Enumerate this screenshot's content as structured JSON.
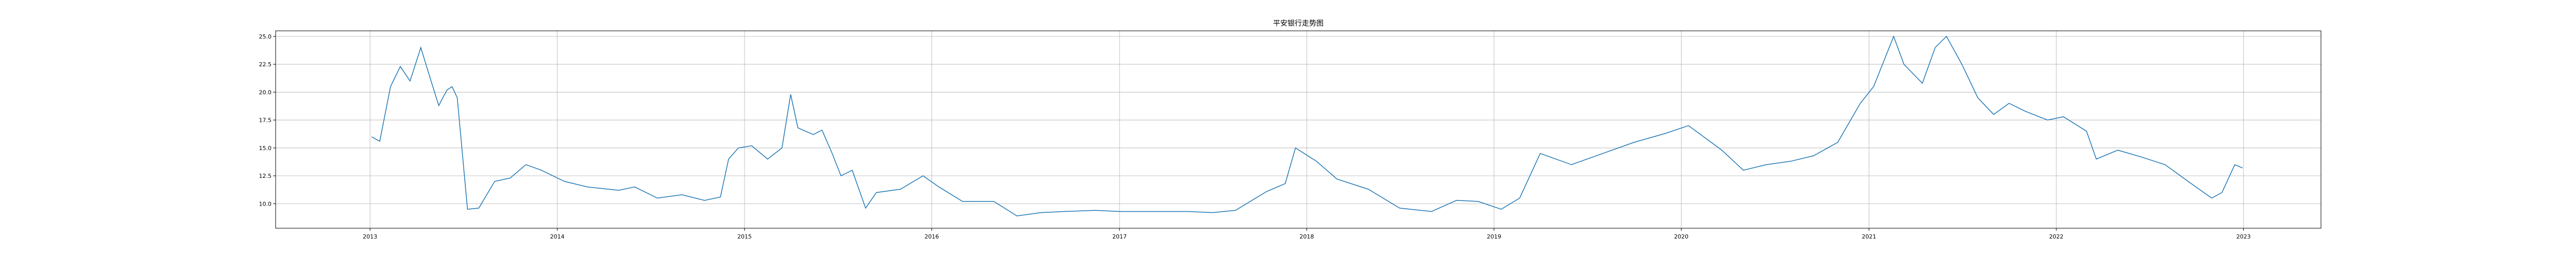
{
  "chart_data": {
    "type": "line",
    "title": "平安银行走势图",
    "xlabel": "",
    "ylabel": "",
    "grid": true,
    "legend": "none",
    "line_color": "#1f77b4",
    "xlim": [
      "2012-07-01",
      "2023-06-01"
    ],
    "ylim": [
      7.8,
      25.5
    ],
    "x_ticks": [
      "2013",
      "2014",
      "2015",
      "2016",
      "2017",
      "2018",
      "2019",
      "2020",
      "2021",
      "2022",
      "2023"
    ],
    "y_ticks": [
      "10.0",
      "12.5",
      "15.0",
      "17.5",
      "20.0",
      "22.5",
      "25.0"
    ],
    "series": [
      {
        "x": [
          "2013-01-04",
          "2013-01-20",
          "2013-02-10",
          "2013-03-01",
          "2013-03-20",
          "2013-04-10",
          "2013-04-30",
          "2013-05-15",
          "2013-05-31",
          "2013-06-10",
          "2013-06-20",
          "2013-07-10",
          "2013-08-01",
          "2013-09-01",
          "2013-10-01",
          "2013-11-01",
          "2013-12-01",
          "2014-01-15",
          "2014-03-01",
          "2014-05-01",
          "2014-06-01",
          "2014-07-15",
          "2014-09-01",
          "2014-10-15",
          "2014-11-15",
          "2014-12-01",
          "2014-12-20",
          "2015-01-15",
          "2015-02-15",
          "2015-03-15",
          "2015-04-01",
          "2015-04-15",
          "2015-05-15",
          "2015-06-01",
          "2015-06-20",
          "2015-07-08",
          "2015-07-30",
          "2015-08-25",
          "2015-09-15",
          "2015-11-01",
          "2015-12-15",
          "2016-01-15",
          "2016-03-01",
          "2016-05-01",
          "2016-06-15",
          "2016-08-01",
          "2016-09-15",
          "2016-11-15",
          "2017-01-01",
          "2017-03-01",
          "2017-05-15",
          "2017-07-01",
          "2017-08-15",
          "2017-10-15",
          "2017-11-20",
          "2017-12-10",
          "2018-01-20",
          "2018-03-01",
          "2018-05-01",
          "2018-07-01",
          "2018-09-01",
          "2018-10-20",
          "2018-12-01",
          "2019-01-15",
          "2019-02-20",
          "2019-04-01",
          "2019-06-01",
          "2019-08-01",
          "2019-10-01",
          "2019-12-01",
          "2020-01-15",
          "2020-03-20",
          "2020-05-01",
          "2020-06-15",
          "2020-08-01",
          "2020-09-15",
          "2020-11-01",
          "2020-12-15",
          "2021-01-10",
          "2021-02-18",
          "2021-03-10",
          "2021-04-15",
          "2021-05-10",
          "2021-06-01",
          "2021-07-01",
          "2021-08-01",
          "2021-09-01",
          "2021-10-01",
          "2021-11-01",
          "2021-12-15",
          "2022-01-15",
          "2022-03-01",
          "2022-03-20",
          "2022-05-01",
          "2022-06-15",
          "2022-08-01",
          "2022-09-15",
          "2022-10-31",
          "2022-11-20",
          "2022-12-15",
          "2022-12-30"
        ],
        "y": [
          16.0,
          15.6,
          20.5,
          22.3,
          21.0,
          24.0,
          21.0,
          18.8,
          20.2,
          20.5,
          19.5,
          9.5,
          9.6,
          12.0,
          12.3,
          13.5,
          13.0,
          12.0,
          11.5,
          11.2,
          11.5,
          10.5,
          10.8,
          10.3,
          10.6,
          14.0,
          15.0,
          15.2,
          14.0,
          15.0,
          19.8,
          16.8,
          16.2,
          16.6,
          14.6,
          12.5,
          13.0,
          9.6,
          11.0,
          11.3,
          12.5,
          11.5,
          10.2,
          10.2,
          8.9,
          9.2,
          9.3,
          9.4,
          9.3,
          9.3,
          9.3,
          9.2,
          9.4,
          11.1,
          11.8,
          15.0,
          13.8,
          12.2,
          11.3,
          9.6,
          9.3,
          10.3,
          10.2,
          9.5,
          10.5,
          14.5,
          13.5,
          14.5,
          15.5,
          16.3,
          17.0,
          14.8,
          13.0,
          13.5,
          13.8,
          14.3,
          15.5,
          19.0,
          20.5,
          25.0,
          22.5,
          20.8,
          24.0,
          25.0,
          22.5,
          19.5,
          18.0,
          19.0,
          18.3,
          17.5,
          17.8,
          16.5,
          14.0,
          14.8,
          14.2,
          13.5,
          12.0,
          10.5,
          11.0,
          13.5,
          13.2
        ]
      }
    ]
  }
}
